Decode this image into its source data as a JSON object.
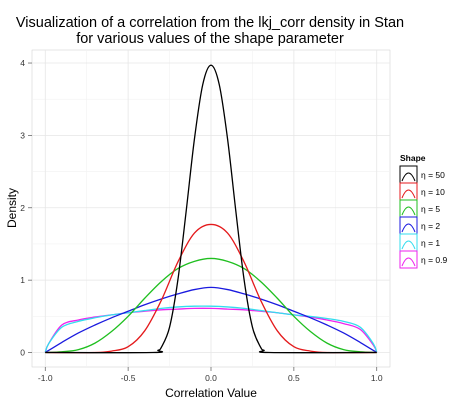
{
  "chart_data": {
    "type": "line",
    "title_line1": "Visualization of a correlation from the lkj_corr density in Stan",
    "title_line2": "for various values of the shape parameter",
    "xlabel": "Correlation Value",
    "ylabel": "Density",
    "xlim": [
      -1.08,
      1.08
    ],
    "ylim": [
      -0.2,
      4.18
    ],
    "x_ticks": [
      -1.0,
      -0.5,
      0.0,
      0.5,
      1.0
    ],
    "x_tick_labels": [
      "-1.0",
      "-0.5",
      "0.0",
      "0.5",
      "1.0"
    ],
    "y_ticks": [
      0,
      1,
      2,
      3,
      4
    ],
    "y_tick_labels": [
      "0",
      "1",
      "2",
      "3",
      "4"
    ],
    "grid": true,
    "legend": {
      "title": "Shape",
      "placement": "right",
      "entries": [
        "η = 50",
        "η = 10",
        "η = 5",
        "η = 2",
        "η = 1",
        "η = 0.9"
      ]
    },
    "series": [
      {
        "name": "η = 50",
        "color": "#000000",
        "x": [
          -1.0,
          -0.35,
          -0.32,
          -0.3,
          -0.25,
          -0.2,
          -0.15,
          -0.1,
          -0.05,
          0.0,
          0.05,
          0.1,
          0.15,
          0.2,
          0.25,
          0.3,
          0.32,
          0.35,
          1.0
        ],
        "y": [
          0,
          0,
          0.03,
          0.07,
          0.35,
          1.0,
          1.95,
          2.95,
          3.7,
          3.97,
          3.7,
          2.95,
          1.95,
          1.0,
          0.35,
          0.07,
          0.03,
          0,
          0
        ]
      },
      {
        "name": "η = 10",
        "color": "#e41a1c",
        "x": [
          -1.0,
          -0.7,
          -0.6,
          -0.5,
          -0.4,
          -0.3,
          -0.2,
          -0.1,
          0.0,
          0.1,
          0.2,
          0.3,
          0.4,
          0.5,
          0.6,
          0.7,
          1.0
        ],
        "y": [
          0,
          0,
          0.02,
          0.08,
          0.3,
          0.72,
          1.25,
          1.65,
          1.77,
          1.65,
          1.25,
          0.72,
          0.3,
          0.08,
          0.02,
          0,
          0
        ]
      },
      {
        "name": "η = 5",
        "color": "#1fbf1f",
        "x": [
          -1.0,
          -0.9,
          -0.8,
          -0.7,
          -0.6,
          -0.5,
          -0.4,
          -0.3,
          -0.2,
          -0.1,
          0.0,
          0.1,
          0.2,
          0.3,
          0.4,
          0.5,
          0.6,
          0.7,
          0.8,
          0.9,
          1.0
        ],
        "y": [
          0,
          0.01,
          0.04,
          0.13,
          0.29,
          0.5,
          0.75,
          0.98,
          1.16,
          1.26,
          1.3,
          1.26,
          1.16,
          0.98,
          0.75,
          0.5,
          0.29,
          0.13,
          0.04,
          0.01,
          0
        ]
      },
      {
        "name": "η = 2",
        "color": "#1a1adf",
        "x": [
          -1.0,
          -0.9,
          -0.8,
          -0.7,
          -0.6,
          -0.5,
          -0.4,
          -0.3,
          -0.2,
          -0.1,
          0.0,
          0.1,
          0.2,
          0.3,
          0.4,
          0.5,
          0.6,
          0.7,
          0.8,
          0.9,
          1.0
        ],
        "y": [
          0,
          0.14,
          0.27,
          0.38,
          0.48,
          0.57,
          0.66,
          0.74,
          0.81,
          0.87,
          0.9,
          0.87,
          0.81,
          0.74,
          0.66,
          0.57,
          0.48,
          0.38,
          0.27,
          0.14,
          0
        ]
      },
      {
        "name": "η = 1",
        "color": "#33ddee",
        "x": [
          -1.0,
          -0.98,
          -0.9,
          -0.8,
          -0.7,
          -0.6,
          -0.5,
          -0.4,
          -0.3,
          -0.2,
          -0.1,
          0.0,
          0.1,
          0.2,
          0.3,
          0.4,
          0.5,
          0.6,
          0.7,
          0.8,
          0.9,
          0.98,
          1.0
        ],
        "y": [
          0,
          0.12,
          0.35,
          0.43,
          0.48,
          0.52,
          0.55,
          0.58,
          0.61,
          0.63,
          0.64,
          0.64,
          0.63,
          0.61,
          0.58,
          0.55,
          0.52,
          0.5,
          0.47,
          0.43,
          0.35,
          0.12,
          0
        ]
      },
      {
        "name": "η = 0.9",
        "color": "#ee22ee",
        "x": [
          -1.0,
          -0.98,
          -0.9,
          -0.8,
          -0.7,
          -0.6,
          -0.5,
          -0.4,
          -0.3,
          -0.2,
          -0.1,
          0.0,
          0.1,
          0.2,
          0.3,
          0.4,
          0.5,
          0.6,
          0.7,
          0.8,
          0.9,
          0.98,
          1.0
        ],
        "y": [
          0,
          0.12,
          0.38,
          0.45,
          0.49,
          0.52,
          0.55,
          0.57,
          0.59,
          0.6,
          0.61,
          0.61,
          0.6,
          0.59,
          0.57,
          0.55,
          0.52,
          0.49,
          0.45,
          0.4,
          0.32,
          0.1,
          0
        ]
      }
    ]
  }
}
